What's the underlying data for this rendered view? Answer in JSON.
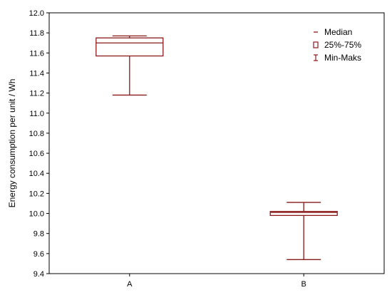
{
  "chart_data": {
    "type": "boxplot",
    "ylabel": "Energy consumption per unit / Wh",
    "xlabel": "",
    "ylim": [
      9.4,
      12.0
    ],
    "yticks": [
      "9.4",
      "9.6",
      "9.8",
      "10.0",
      "10.2",
      "10.4",
      "10.6",
      "10.8",
      "11.0",
      "11.2",
      "11.4",
      "11.6",
      "11.8",
      "12.0"
    ],
    "grid": false,
    "legend_position": "top-right",
    "categories": [
      "A",
      "B"
    ],
    "boxes": [
      {
        "category": "A",
        "min": 11.18,
        "q1": 11.57,
        "median": 11.7,
        "q3": 11.75,
        "max": 11.77
      },
      {
        "category": "B",
        "min": 9.54,
        "q1": 9.98,
        "median": 10.01,
        "q3": 10.02,
        "max": 10.11
      }
    ],
    "legend": [
      {
        "symbol": "median",
        "label": "Median"
      },
      {
        "symbol": "box",
        "label": "25%-75%"
      },
      {
        "symbol": "whisker",
        "label": "Min-Maks"
      }
    ],
    "colors": {
      "box": "#8b1a1a",
      "frame": "#000000"
    }
  }
}
